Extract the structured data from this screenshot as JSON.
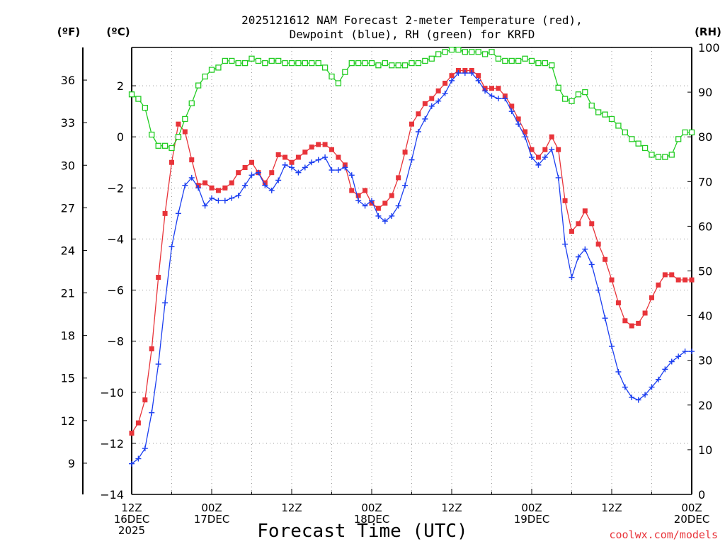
{
  "header": {
    "title_line1": "2025121612 NAM Forecast 2-meter Temperature (red),",
    "title_line2": "Dewpoint (blue), RH (green) for KRFD",
    "unit_f": "(ºF)",
    "unit_c": "(ºC)",
    "unit_rh": "(RH)"
  },
  "footer": {
    "xlabel": "Forecast Time (UTC)",
    "credit": "coolwx.com/models"
  },
  "colors": {
    "temperature": "#e8343a",
    "dewpoint": "#1c3ff0",
    "rh": "#22cc22",
    "grid": "#999999",
    "credit": "#e8343a"
  },
  "chart_data": {
    "type": "line",
    "x_unit": "forecast hour from 2025121612Z",
    "xlim": [
      0,
      84
    ],
    "x_ticks": [
      {
        "hour": 0,
        "lines": [
          "12Z",
          "16DEC",
          "2025"
        ]
      },
      {
        "hour": 12,
        "lines": [
          "00Z",
          "17DEC"
        ]
      },
      {
        "hour": 24,
        "lines": [
          "12Z"
        ]
      },
      {
        "hour": 36,
        "lines": [
          "00Z",
          "18DEC"
        ]
      },
      {
        "hour": 48,
        "lines": [
          "12Z"
        ]
      },
      {
        "hour": 60,
        "lines": [
          "00Z",
          "19DEC"
        ]
      },
      {
        "hour": 72,
        "lines": [
          "12Z"
        ]
      },
      {
        "hour": 84,
        "lines": [
          "00Z",
          "20DEC"
        ]
      }
    ],
    "celsius_axis": {
      "lim": [
        -14,
        3.5
      ],
      "ticks": [
        -14,
        -12,
        -10,
        -8,
        -6,
        -4,
        -2,
        0,
        2
      ],
      "tick_labels": [
        "−14",
        "−12",
        "−10",
        "−8",
        "−6",
        "−4",
        "−2",
        "0",
        "2"
      ]
    },
    "fahrenheit_axis": {
      "ticks": [
        9,
        12,
        15,
        18,
        21,
        24,
        27,
        30,
        33,
        36
      ]
    },
    "rh_axis": {
      "lim": [
        0,
        100
      ],
      "ticks": [
        0,
        10,
        20,
        30,
        40,
        50,
        60,
        70,
        80,
        90,
        100
      ]
    },
    "series": [
      {
        "name": "2-meter Temperature",
        "units": "degC",
        "axis": "celsius",
        "color": "red",
        "marker": "filled-square",
        "values": [
          [
            0,
            -11.6
          ],
          [
            1,
            -11.2
          ],
          [
            2,
            -10.3
          ],
          [
            3,
            -8.3
          ],
          [
            4,
            -5.5
          ],
          [
            5,
            -3.0
          ],
          [
            6,
            -1.0
          ],
          [
            7,
            0.5
          ],
          [
            8,
            0.2
          ],
          [
            9,
            -0.9
          ],
          [
            10,
            -1.9
          ],
          [
            11,
            -1.8
          ],
          [
            12,
            -2.0
          ],
          [
            13,
            -2.1
          ],
          [
            14,
            -2.0
          ],
          [
            15,
            -1.8
          ],
          [
            16,
            -1.4
          ],
          [
            17,
            -1.2
          ],
          [
            18,
            -1.0
          ],
          [
            19,
            -1.4
          ],
          [
            20,
            -1.8
          ],
          [
            21,
            -1.4
          ],
          [
            22,
            -0.7
          ],
          [
            23,
            -0.8
          ],
          [
            24,
            -1.0
          ],
          [
            25,
            -0.8
          ],
          [
            26,
            -0.6
          ],
          [
            27,
            -0.4
          ],
          [
            28,
            -0.3
          ],
          [
            29,
            -0.3
          ],
          [
            30,
            -0.5
          ],
          [
            31,
            -0.8
          ],
          [
            32,
            -1.1
          ],
          [
            33,
            -2.1
          ],
          [
            34,
            -2.3
          ],
          [
            35,
            -2.1
          ],
          [
            36,
            -2.6
          ],
          [
            37,
            -2.8
          ],
          [
            38,
            -2.6
          ],
          [
            39,
            -2.3
          ],
          [
            40,
            -1.6
          ],
          [
            41,
            -0.6
          ],
          [
            42,
            0.5
          ],
          [
            43,
            0.9
          ],
          [
            44,
            1.3
          ],
          [
            45,
            1.5
          ],
          [
            46,
            1.8
          ],
          [
            47,
            2.1
          ],
          [
            48,
            2.4
          ],
          [
            49,
            2.6
          ],
          [
            50,
            2.6
          ],
          [
            51,
            2.6
          ],
          [
            52,
            2.4
          ],
          [
            53,
            1.9
          ],
          [
            54,
            1.9
          ],
          [
            55,
            1.9
          ],
          [
            56,
            1.6
          ],
          [
            57,
            1.2
          ],
          [
            58,
            0.7
          ],
          [
            59,
            0.2
          ],
          [
            60,
            -0.5
          ],
          [
            61,
            -0.8
          ],
          [
            62,
            -0.5
          ],
          [
            63,
            0.0
          ],
          [
            64,
            -0.5
          ],
          [
            65,
            -2.5
          ],
          [
            66,
            -3.7
          ],
          [
            67,
            -3.4
          ],
          [
            68,
            -2.9
          ],
          [
            69,
            -3.4
          ],
          [
            70,
            -4.2
          ],
          [
            71,
            -4.8
          ],
          [
            72,
            -5.6
          ],
          [
            73,
            -6.5
          ],
          [
            74,
            -7.2
          ],
          [
            75,
            -7.4
          ],
          [
            76,
            -7.3
          ],
          [
            77,
            -6.9
          ],
          [
            78,
            -6.3
          ],
          [
            79,
            -5.8
          ],
          [
            80,
            -5.4
          ],
          [
            81,
            -5.4
          ],
          [
            82,
            -5.6
          ],
          [
            83,
            -5.6
          ],
          [
            84,
            -5.6
          ]
        ]
      },
      {
        "name": "2-meter Dewpoint",
        "units": "degC",
        "axis": "celsius",
        "color": "blue",
        "marker": "plus",
        "values": [
          [
            0,
            -12.8
          ],
          [
            1,
            -12.6
          ],
          [
            2,
            -12.2
          ],
          [
            3,
            -10.8
          ],
          [
            4,
            -8.9
          ],
          [
            5,
            -6.5
          ],
          [
            6,
            -4.3
          ],
          [
            7,
            -3.0
          ],
          [
            8,
            -1.9
          ],
          [
            9,
            -1.6
          ],
          [
            10,
            -2.0
          ],
          [
            11,
            -2.7
          ],
          [
            12,
            -2.4
          ],
          [
            13,
            -2.5
          ],
          [
            14,
            -2.5
          ],
          [
            15,
            -2.4
          ],
          [
            16,
            -2.3
          ],
          [
            17,
            -1.9
          ],
          [
            18,
            -1.5
          ],
          [
            19,
            -1.4
          ],
          [
            20,
            -1.9
          ],
          [
            21,
            -2.1
          ],
          [
            22,
            -1.7
          ],
          [
            23,
            -1.1
          ],
          [
            24,
            -1.2
          ],
          [
            25,
            -1.4
          ],
          [
            26,
            -1.2
          ],
          [
            27,
            -1.0
          ],
          [
            28,
            -0.9
          ],
          [
            29,
            -0.8
          ],
          [
            30,
            -1.3
          ],
          [
            31,
            -1.3
          ],
          [
            32,
            -1.2
          ],
          [
            33,
            -1.5
          ],
          [
            34,
            -2.5
          ],
          [
            35,
            -2.7
          ],
          [
            36,
            -2.5
          ],
          [
            37,
            -3.1
          ],
          [
            38,
            -3.3
          ],
          [
            39,
            -3.1
          ],
          [
            40,
            -2.7
          ],
          [
            41,
            -1.9
          ],
          [
            42,
            -0.9
          ],
          [
            43,
            0.2
          ],
          [
            44,
            0.7
          ],
          [
            45,
            1.2
          ],
          [
            46,
            1.4
          ],
          [
            47,
            1.7
          ],
          [
            48,
            2.2
          ],
          [
            49,
            2.5
          ],
          [
            50,
            2.5
          ],
          [
            51,
            2.5
          ],
          [
            52,
            2.2
          ],
          [
            53,
            1.8
          ],
          [
            54,
            1.6
          ],
          [
            55,
            1.5
          ],
          [
            56,
            1.5
          ],
          [
            57,
            1.0
          ],
          [
            58,
            0.5
          ],
          [
            59,
            0.0
          ],
          [
            60,
            -0.8
          ],
          [
            61,
            -1.1
          ],
          [
            62,
            -0.8
          ],
          [
            63,
            -0.5
          ],
          [
            64,
            -1.6
          ],
          [
            65,
            -4.2
          ],
          [
            66,
            -5.5
          ],
          [
            67,
            -4.7
          ],
          [
            68,
            -4.4
          ],
          [
            69,
            -5.0
          ],
          [
            70,
            -6.0
          ],
          [
            71,
            -7.1
          ],
          [
            72,
            -8.2
          ],
          [
            73,
            -9.2
          ],
          [
            74,
            -9.8
          ],
          [
            75,
            -10.2
          ],
          [
            76,
            -10.3
          ],
          [
            77,
            -10.1
          ],
          [
            78,
            -9.8
          ],
          [
            79,
            -9.5
          ],
          [
            80,
            -9.1
          ],
          [
            81,
            -8.8
          ],
          [
            82,
            -8.6
          ],
          [
            83,
            -8.4
          ],
          [
            84,
            -8.4
          ]
        ]
      },
      {
        "name": "Relative Humidity",
        "units": "percent",
        "axis": "rh",
        "color": "green",
        "marker": "open-square",
        "values": [
          [
            0,
            89.5
          ],
          [
            1,
            88.5
          ],
          [
            2,
            86.5
          ],
          [
            3,
            80.5
          ],
          [
            4,
            78
          ],
          [
            5,
            78
          ],
          [
            6,
            77.5
          ],
          [
            7,
            80
          ],
          [
            8,
            84
          ],
          [
            9,
            87.5
          ],
          [
            10,
            91.5
          ],
          [
            11,
            93.5
          ],
          [
            12,
            95
          ],
          [
            13,
            95.5
          ],
          [
            14,
            97
          ],
          [
            15,
            97
          ],
          [
            16,
            96.5
          ],
          [
            17,
            96.5
          ],
          [
            18,
            97.5
          ],
          [
            19,
            97
          ],
          [
            20,
            96.5
          ],
          [
            21,
            97
          ],
          [
            22,
            97
          ],
          [
            23,
            96.5
          ],
          [
            24,
            96.5
          ],
          [
            25,
            96.5
          ],
          [
            26,
            96.5
          ],
          [
            27,
            96.5
          ],
          [
            28,
            96.5
          ],
          [
            29,
            95.5
          ],
          [
            30,
            93.5
          ],
          [
            31,
            92
          ],
          [
            32,
            94.5
          ],
          [
            33,
            96.5
          ],
          [
            34,
            96.5
          ],
          [
            35,
            96.5
          ],
          [
            36,
            96.5
          ],
          [
            37,
            96
          ],
          [
            38,
            96.5
          ],
          [
            39,
            96
          ],
          [
            40,
            96
          ],
          [
            41,
            96
          ],
          [
            42,
            96.5
          ],
          [
            43,
            96.5
          ],
          [
            44,
            97
          ],
          [
            45,
            97.5
          ],
          [
            46,
            98.5
          ],
          [
            47,
            99
          ],
          [
            48,
            99.5
          ],
          [
            49,
            99.5
          ],
          [
            50,
            99
          ],
          [
            51,
            99
          ],
          [
            52,
            99
          ],
          [
            53,
            98.5
          ],
          [
            54,
            99
          ],
          [
            55,
            97.5
          ],
          [
            56,
            97
          ],
          [
            57,
            97
          ],
          [
            58,
            97
          ],
          [
            59,
            97.5
          ],
          [
            60,
            97
          ],
          [
            61,
            96.5
          ],
          [
            62,
            96.5
          ],
          [
            63,
            96
          ],
          [
            64,
            91
          ],
          [
            65,
            88.5
          ],
          [
            66,
            88
          ],
          [
            67,
            89.5
          ],
          [
            68,
            90
          ],
          [
            69,
            87
          ],
          [
            70,
            85.5
          ],
          [
            71,
            85
          ],
          [
            72,
            84
          ],
          [
            73,
            82.5
          ],
          [
            74,
            81
          ],
          [
            75,
            79.5
          ],
          [
            76,
            78.5
          ],
          [
            77,
            77.5
          ],
          [
            78,
            76
          ],
          [
            79,
            75.5
          ],
          [
            80,
            75.5
          ],
          [
            81,
            76
          ],
          [
            82,
            79.5
          ],
          [
            83,
            81
          ],
          [
            84,
            81
          ]
        ]
      }
    ]
  }
}
